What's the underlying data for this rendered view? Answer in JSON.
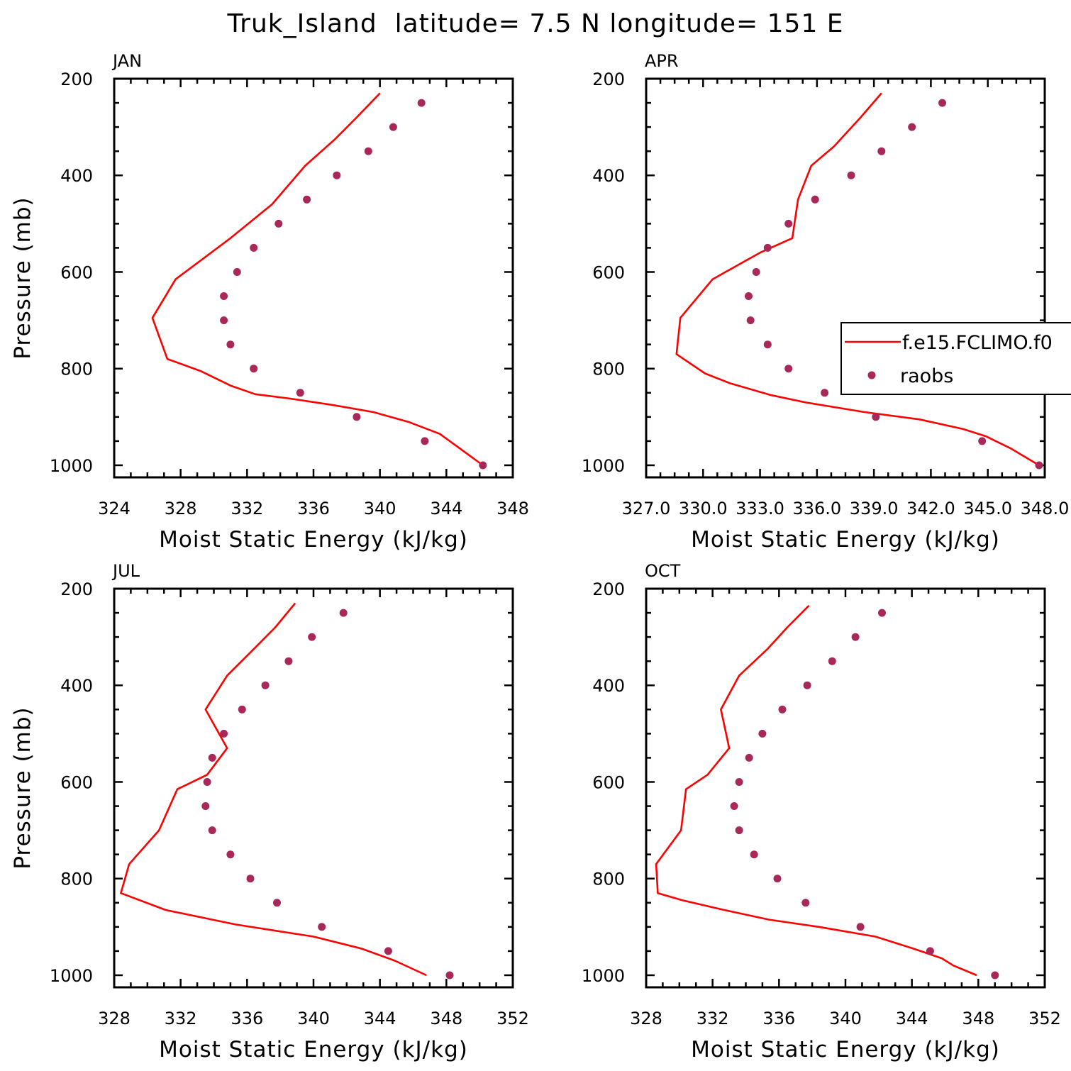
{
  "figure": {
    "title": "Truk_Island  latitude= 7.5 N longitude= 151 E"
  },
  "legend": {
    "model_label": "f.e15.FCLIMO.f0",
    "obs_label": "raobs"
  },
  "colors": {
    "model": "#ff0000",
    "obs": "#a8285a",
    "frame": "#000000",
    "background": "#ffffff"
  },
  "chart_data": [
    {
      "type": "line+scatter",
      "panel": "JAN",
      "title": "JAN",
      "xlabel": "Moist Static Energy (kJ/kg)",
      "ylabel": "Pressure (mb)",
      "xlim": [
        324,
        348
      ],
      "xticks": [
        324,
        328,
        332,
        336,
        340,
        344,
        348
      ],
      "xtick_labels": [
        "324",
        "328",
        "332",
        "336",
        "340",
        "344",
        "348"
      ],
      "ylim": [
        1025,
        200
      ],
      "yticks": [
        200,
        400,
        600,
        800,
        1000
      ],
      "yscale": "linear",
      "series": [
        {
          "name": "f.e15.FCLIMO.f0",
          "style": "line",
          "points": [
            [
              346.2,
              1000
            ],
            [
              344.8,
              965
            ],
            [
              343.6,
              935
            ],
            [
              341.7,
              910
            ],
            [
              339.6,
              890
            ],
            [
              337.1,
              875
            ],
            [
              334.6,
              862
            ],
            [
              332.5,
              853
            ],
            [
              331.0,
              835
            ],
            [
              329.2,
              805
            ],
            [
              327.2,
              780
            ],
            [
              326.3,
              695
            ],
            [
              327.7,
              615
            ],
            [
              331.0,
              530
            ],
            [
              333.5,
              460
            ],
            [
              335.5,
              380
            ],
            [
              337.3,
              325
            ],
            [
              338.6,
              280
            ],
            [
              340.0,
              230
            ]
          ]
        },
        {
          "name": "raobs",
          "style": "scatter",
          "points": [
            [
              346.2,
              1000
            ],
            [
              342.7,
              950
            ],
            [
              338.6,
              900
            ],
            [
              335.2,
              850
            ],
            [
              332.4,
              800
            ],
            [
              331.0,
              750
            ],
            [
              330.6,
              700
            ],
            [
              330.6,
              650
            ],
            [
              331.4,
              600
            ],
            [
              332.4,
              550
            ],
            [
              333.9,
              500
            ],
            [
              335.6,
              450
            ],
            [
              337.4,
              400
            ],
            [
              339.3,
              350
            ],
            [
              340.8,
              300
            ],
            [
              342.5,
              250
            ]
          ]
        }
      ]
    },
    {
      "type": "line+scatter",
      "panel": "APR",
      "title": "APR",
      "xlabel": "Moist Static Energy (kJ/kg)",
      "ylabel": "",
      "xlim": [
        327,
        348
      ],
      "xticks": [
        327,
        330,
        333,
        336,
        339,
        342,
        345,
        348
      ],
      "xtick_labels": [
        "327.0",
        "330.0",
        "333.0",
        "336.0",
        "339.0",
        "342.0",
        "345.0",
        "348.0"
      ],
      "ylim": [
        1025,
        200
      ],
      "yticks": [
        200,
        400,
        600,
        800,
        1000
      ],
      "yscale": "linear",
      "legend_position": "right",
      "series": [
        {
          "name": "f.e15.FCLIMO.f0",
          "style": "line",
          "points": [
            [
              347.7,
              1000
            ],
            [
              346.2,
              965
            ],
            [
              344.9,
              940
            ],
            [
              343.7,
              925
            ],
            [
              341.4,
              905
            ],
            [
              338.5,
              890
            ],
            [
              335.4,
              870
            ],
            [
              333.6,
              855
            ],
            [
              331.4,
              830
            ],
            [
              330.1,
              810
            ],
            [
              328.6,
              770
            ],
            [
              328.8,
              695
            ],
            [
              330.5,
              615
            ],
            [
              333.0,
              560
            ],
            [
              334.7,
              530
            ],
            [
              335.0,
              450
            ],
            [
              335.7,
              380
            ],
            [
              336.9,
              340
            ],
            [
              338.3,
              280
            ],
            [
              339.4,
              230
            ]
          ]
        },
        {
          "name": "raobs",
          "style": "scatter",
          "points": [
            [
              347.7,
              1000
            ],
            [
              344.7,
              950
            ],
            [
              339.1,
              900
            ],
            [
              336.4,
              850
            ],
            [
              334.5,
              800
            ],
            [
              333.4,
              750
            ],
            [
              332.5,
              700
            ],
            [
              332.4,
              650
            ],
            [
              332.8,
              600
            ],
            [
              333.4,
              550
            ],
            [
              334.5,
              500
            ],
            [
              335.9,
              450
            ],
            [
              337.8,
              400
            ],
            [
              339.4,
              350
            ],
            [
              341.0,
              300
            ],
            [
              342.6,
              250
            ]
          ]
        }
      ]
    },
    {
      "type": "line+scatter",
      "panel": "JUL",
      "title": "JUL",
      "xlabel": "Moist Static Energy (kJ/kg)",
      "ylabel": "Pressure (mb)",
      "xlim": [
        328,
        352
      ],
      "xticks": [
        328,
        332,
        336,
        340,
        344,
        348,
        352
      ],
      "xtick_labels": [
        "328",
        "332",
        "336",
        "340",
        "344",
        "348",
        "352"
      ],
      "ylim": [
        1025,
        200
      ],
      "yticks": [
        200,
        400,
        600,
        800,
        1000
      ],
      "yscale": "linear",
      "series": [
        {
          "name": "f.e15.FCLIMO.f0",
          "style": "line",
          "points": [
            [
              346.8,
              1000
            ],
            [
              344.9,
              970
            ],
            [
              342.9,
              945
            ],
            [
              340.0,
              920
            ],
            [
              335.3,
              895
            ],
            [
              331.1,
              865
            ],
            [
              328.4,
              830
            ],
            [
              328.9,
              770
            ],
            [
              330.7,
              700
            ],
            [
              331.8,
              615
            ],
            [
              333.6,
              585
            ],
            [
              334.8,
              530
            ],
            [
              333.5,
              450
            ],
            [
              334.8,
              380
            ],
            [
              336.4,
              325
            ],
            [
              337.7,
              280
            ],
            [
              338.9,
              230
            ]
          ]
        },
        {
          "name": "raobs",
          "style": "scatter",
          "points": [
            [
              348.2,
              1000
            ],
            [
              344.5,
              950
            ],
            [
              340.5,
              900
            ],
            [
              337.8,
              850
            ],
            [
              336.2,
              800
            ],
            [
              335.0,
              750
            ],
            [
              333.9,
              700
            ],
            [
              333.5,
              650
            ],
            [
              333.6,
              600
            ],
            [
              333.9,
              550
            ],
            [
              334.6,
              500
            ],
            [
              335.7,
              450
            ],
            [
              337.1,
              400
            ],
            [
              338.5,
              350
            ],
            [
              339.9,
              300
            ],
            [
              341.8,
              250
            ]
          ]
        }
      ]
    },
    {
      "type": "line+scatter",
      "panel": "OCT",
      "title": "OCT",
      "xlabel": "Moist Static Energy (kJ/kg)",
      "ylabel": "",
      "xlim": [
        328,
        352
      ],
      "xticks": [
        328,
        332,
        336,
        340,
        344,
        348,
        352
      ],
      "xtick_labels": [
        "328",
        "332",
        "336",
        "340",
        "344",
        "348",
        "352"
      ],
      "ylim": [
        1025,
        200
      ],
      "yticks": [
        200,
        400,
        600,
        800,
        1000
      ],
      "yscale": "linear",
      "series": [
        {
          "name": "f.e15.FCLIMO.f0",
          "style": "line",
          "points": [
            [
              347.9,
              1000
            ],
            [
              346.5,
              980
            ],
            [
              345.8,
              965
            ],
            [
              344.1,
              945
            ],
            [
              341.8,
              920
            ],
            [
              338.4,
              900
            ],
            [
              335.4,
              885
            ],
            [
              332.7,
              865
            ],
            [
              330.2,
              845
            ],
            [
              328.7,
              830
            ],
            [
              328.6,
              770
            ],
            [
              330.1,
              700
            ],
            [
              330.4,
              615
            ],
            [
              331.7,
              585
            ],
            [
              333.0,
              530
            ],
            [
              332.5,
              450
            ],
            [
              333.6,
              380
            ],
            [
              335.3,
              325
            ],
            [
              336.5,
              280
            ],
            [
              337.8,
              235
            ]
          ]
        },
        {
          "name": "raobs",
          "style": "scatter",
          "points": [
            [
              349.0,
              1000
            ],
            [
              345.1,
              950
            ],
            [
              340.9,
              900
            ],
            [
              337.6,
              850
            ],
            [
              335.9,
              800
            ],
            [
              334.5,
              750
            ],
            [
              333.6,
              700
            ],
            [
              333.3,
              650
            ],
            [
              333.6,
              600
            ],
            [
              334.2,
              550
            ],
            [
              335.0,
              500
            ],
            [
              336.2,
              450
            ],
            [
              337.7,
              400
            ],
            [
              339.2,
              350
            ],
            [
              340.6,
              300
            ],
            [
              342.2,
              250
            ]
          ]
        }
      ]
    }
  ]
}
